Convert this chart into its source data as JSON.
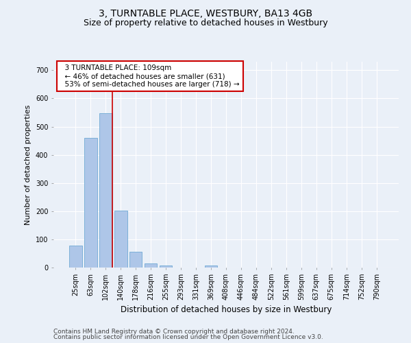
{
  "title1": "3, TURNTABLE PLACE, WESTBURY, BA13 4GB",
  "title2": "Size of property relative to detached houses in Westbury",
  "xlabel": "Distribution of detached houses by size in Westbury",
  "ylabel": "Number of detached properties",
  "footer1": "Contains HM Land Registry data © Crown copyright and database right 2024.",
  "footer2": "Contains public sector information licensed under the Open Government Licence v3.0.",
  "categories": [
    "25sqm",
    "63sqm",
    "102sqm",
    "140sqm",
    "178sqm",
    "216sqm",
    "255sqm",
    "293sqm",
    "331sqm",
    "369sqm",
    "408sqm",
    "446sqm",
    "484sqm",
    "522sqm",
    "561sqm",
    "599sqm",
    "637sqm",
    "675sqm",
    "714sqm",
    "752sqm",
    "790sqm"
  ],
  "values": [
    78,
    460,
    547,
    202,
    55,
    14,
    8,
    0,
    0,
    8,
    0,
    0,
    0,
    0,
    0,
    0,
    0,
    0,
    0,
    0,
    0
  ],
  "bar_color": "#aec6e8",
  "bar_edge_color": "#6faad4",
  "vline_x": 2.45,
  "vline_color": "#cc0000",
  "annotation_text": "  3 TURNTABLE PLACE: 109sqm\n  ← 46% of detached houses are smaller (631)\n  53% of semi-detached houses are larger (718) →",
  "annotation_box_color": "#ffffff",
  "annotation_box_edge": "#cc0000",
  "ylim": [
    0,
    730
  ],
  "yticks": [
    0,
    100,
    200,
    300,
    400,
    500,
    600,
    700
  ],
  "bg_color": "#eaf0f8",
  "plot_bg_color": "#eaf0f8",
  "grid_color": "#ffffff",
  "title1_fontsize": 10,
  "title2_fontsize": 9,
  "xlabel_fontsize": 8.5,
  "ylabel_fontsize": 8,
  "tick_fontsize": 7,
  "footer_fontsize": 6.5
}
